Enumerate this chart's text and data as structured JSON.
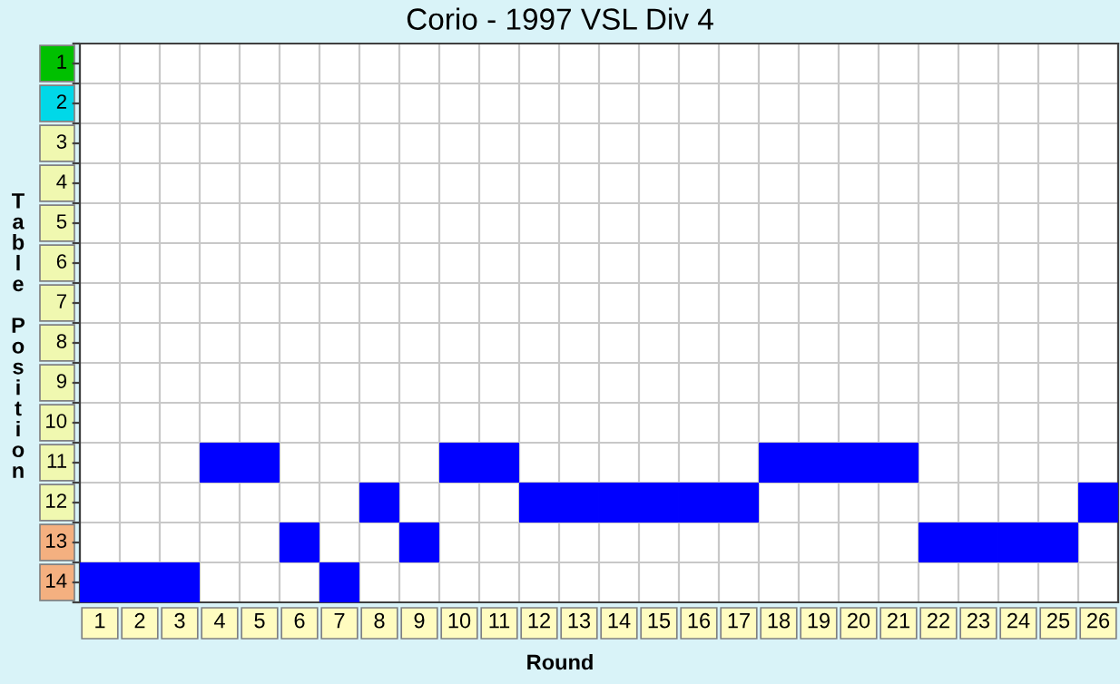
{
  "chart_data": {
    "type": "scatter",
    "title": "Corio - 1997 VSL Div 4",
    "xlabel": "Round",
    "ylabel": "Table Position",
    "categories": [
      "1",
      "2",
      "3",
      "4",
      "5",
      "6",
      "7",
      "8",
      "9",
      "10",
      "11",
      "12",
      "13",
      "14",
      "15",
      "16",
      "17",
      "18",
      "19",
      "20",
      "21",
      "22",
      "23",
      "24",
      "25",
      "26"
    ],
    "series": [
      {
        "color": "#0000ff",
        "values": [
          14,
          14,
          14,
          11,
          11,
          13,
          14,
          12,
          13,
          11,
          11,
          12,
          12,
          12,
          12,
          12,
          12,
          11,
          11,
          11,
          11,
          13,
          13,
          13,
          13,
          12
        ]
      }
    ],
    "ylim": [
      14.5,
      0.5
    ],
    "yticks": [
      {
        "value": 0.5,
        "label": null
      },
      1,
      {
        "value": 1.5,
        "label": null
      },
      2,
      {
        "value": 2.5,
        "label": null
      },
      3,
      {
        "value": 3.5,
        "label": null
      },
      4,
      {
        "value": 4.5,
        "label": null
      },
      5,
      {
        "value": 5.5,
        "label": null
      },
      6,
      {
        "value": 6.5,
        "label": null
      },
      7,
      {
        "value": 7.5,
        "label": null
      },
      8,
      {
        "value": 8.5,
        "label": null
      },
      9,
      {
        "value": 9.5,
        "label": null
      },
      10,
      {
        "value": 10.5,
        "label": null
      },
      11,
      {
        "value": 11.5,
        "label": null
      },
      12,
      {
        "value": 12.5,
        "label": null
      },
      13,
      {
        "value": 13.5,
        "label": null
      },
      14,
      {
        "value": 14.5,
        "label": null
      }
    ],
    "marker": "square",
    "grid": true,
    "legend": false
  }
}
